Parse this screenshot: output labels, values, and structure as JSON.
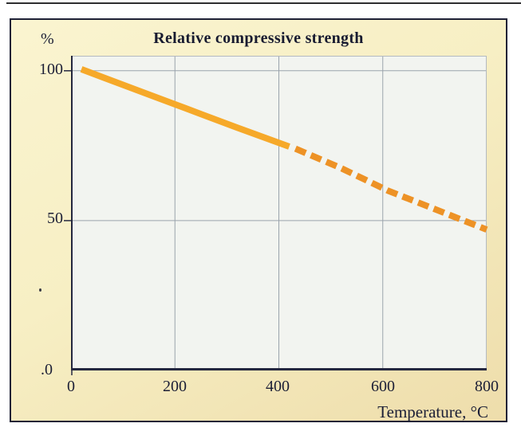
{
  "chart_data": {
    "type": "line",
    "title": "Relative compressive strength",
    "xlabel": "Temperature, °C",
    "ylabel": "%",
    "xlim": [
      0,
      800
    ],
    "ylim": [
      0,
      105
    ],
    "x_ticks": [
      0,
      200,
      400,
      600,
      800
    ],
    "x_tick_labels": [
      "0",
      "200",
      "400",
      "600",
      "800"
    ],
    "y_ticks": [
      100,
      50,
      0
    ],
    "y_tick_labels": [
      "100",
      "50",
      ".0"
    ],
    "grid": {
      "x_values": [
        200,
        400,
        600
      ],
      "y_values": [
        100,
        50
      ]
    },
    "legend_position": "none",
    "series": [
      {
        "name": "solid-segment",
        "style": "solid",
        "color": "#f6a92a",
        "width": 8,
        "points": [
          [
            20,
            100.5
          ],
          [
            120,
            94
          ],
          [
            220,
            87.5
          ],
          [
            320,
            81
          ],
          [
            420,
            74.7
          ]
        ]
      },
      {
        "name": "dashed-segment",
        "style": "dashed",
        "color": "#ed9226",
        "width": 8,
        "dash": [
          14,
          7
        ],
        "points": [
          [
            432,
            74
          ],
          [
            520,
            67.5
          ],
          [
            610,
            60
          ],
          [
            705,
            53.5
          ],
          [
            800,
            47
          ]
        ]
      }
    ],
    "plot_bg": "#f2f4f0",
    "grid_color": "#9aa3ac",
    "frame_color": "#b4bac0",
    "axis_color": "#252840",
    "tick_length": 9
  },
  "card": {
    "background_start": "#faf4d0",
    "background_end": "#eeddab",
    "border_color": "#1e2136"
  }
}
